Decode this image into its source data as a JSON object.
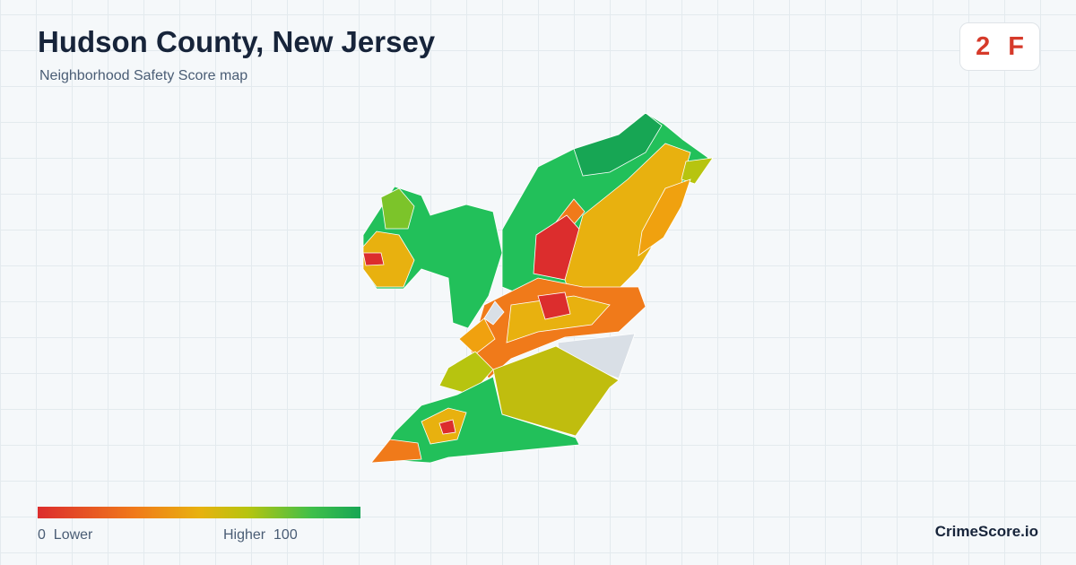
{
  "header": {
    "title": "Hudson County, New Jersey",
    "subtitle": "Neighborhood Safety Score map"
  },
  "badge": {
    "score": 2,
    "grade": "F"
  },
  "legend": {
    "min": 0,
    "min_label": "Lower",
    "max_label": "Higher",
    "max": 100
  },
  "brand": "CrimeScore.io"
}
